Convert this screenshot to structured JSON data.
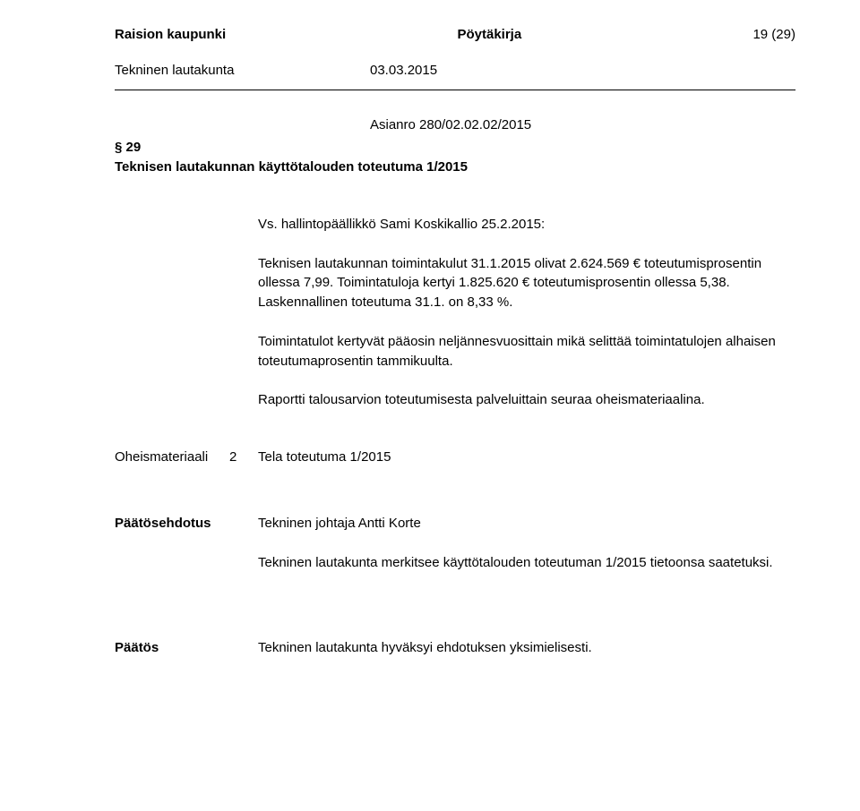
{
  "header": {
    "left": "Raision kaupunki",
    "center": "Pöytäkirja",
    "right": "19 (29)"
  },
  "subheader": {
    "left": "Tekninen lautakunta",
    "date": "03.03.2015"
  },
  "asianro": "Asianro 280/02.02.02/2015",
  "section": {
    "number": "§ 29",
    "title": "Teknisen lautakunnan käyttötalouden toteutuma 1/2015"
  },
  "body": {
    "intro": "Vs. hallintopäällikkö Sami Koskikallio 25.2.2015:",
    "p1": "Teknisen lautakunnan toimintakulut 31.1.2015 olivat 2.624.569 € toteutumisprosentin ollessa 7,99. Toimintatuloja kertyi 1.825.620 € toteutumisprosentin ollessa 5,38. Laskennallinen toteutuma 31.1. on 8,33 %.",
    "p2": "Toimintatulot kertyvät pääosin neljännesvuosittain mikä selittää toimintatulojen alhaisen toteutumaprosentin tammikuulta.",
    "p3": "Raportti talousarvion toteutumisesta palveluittain seuraa oheismateriaalina."
  },
  "oheismateriaali": {
    "label": "Oheismateriaali",
    "num": "2",
    "text": "Tela toteutuma 1/2015"
  },
  "paatosehdotus": {
    "label": "Päätösehdotus",
    "author": "Tekninen johtaja Antti Korte",
    "text": "Tekninen lautakunta merkitsee käyttötalouden toteutuman 1/2015 tietoonsa saatetuksi."
  },
  "paatos": {
    "label": "Päätös",
    "text": "Tekninen lautakunta hyväksyi ehdotuksen yksimielisesti."
  }
}
